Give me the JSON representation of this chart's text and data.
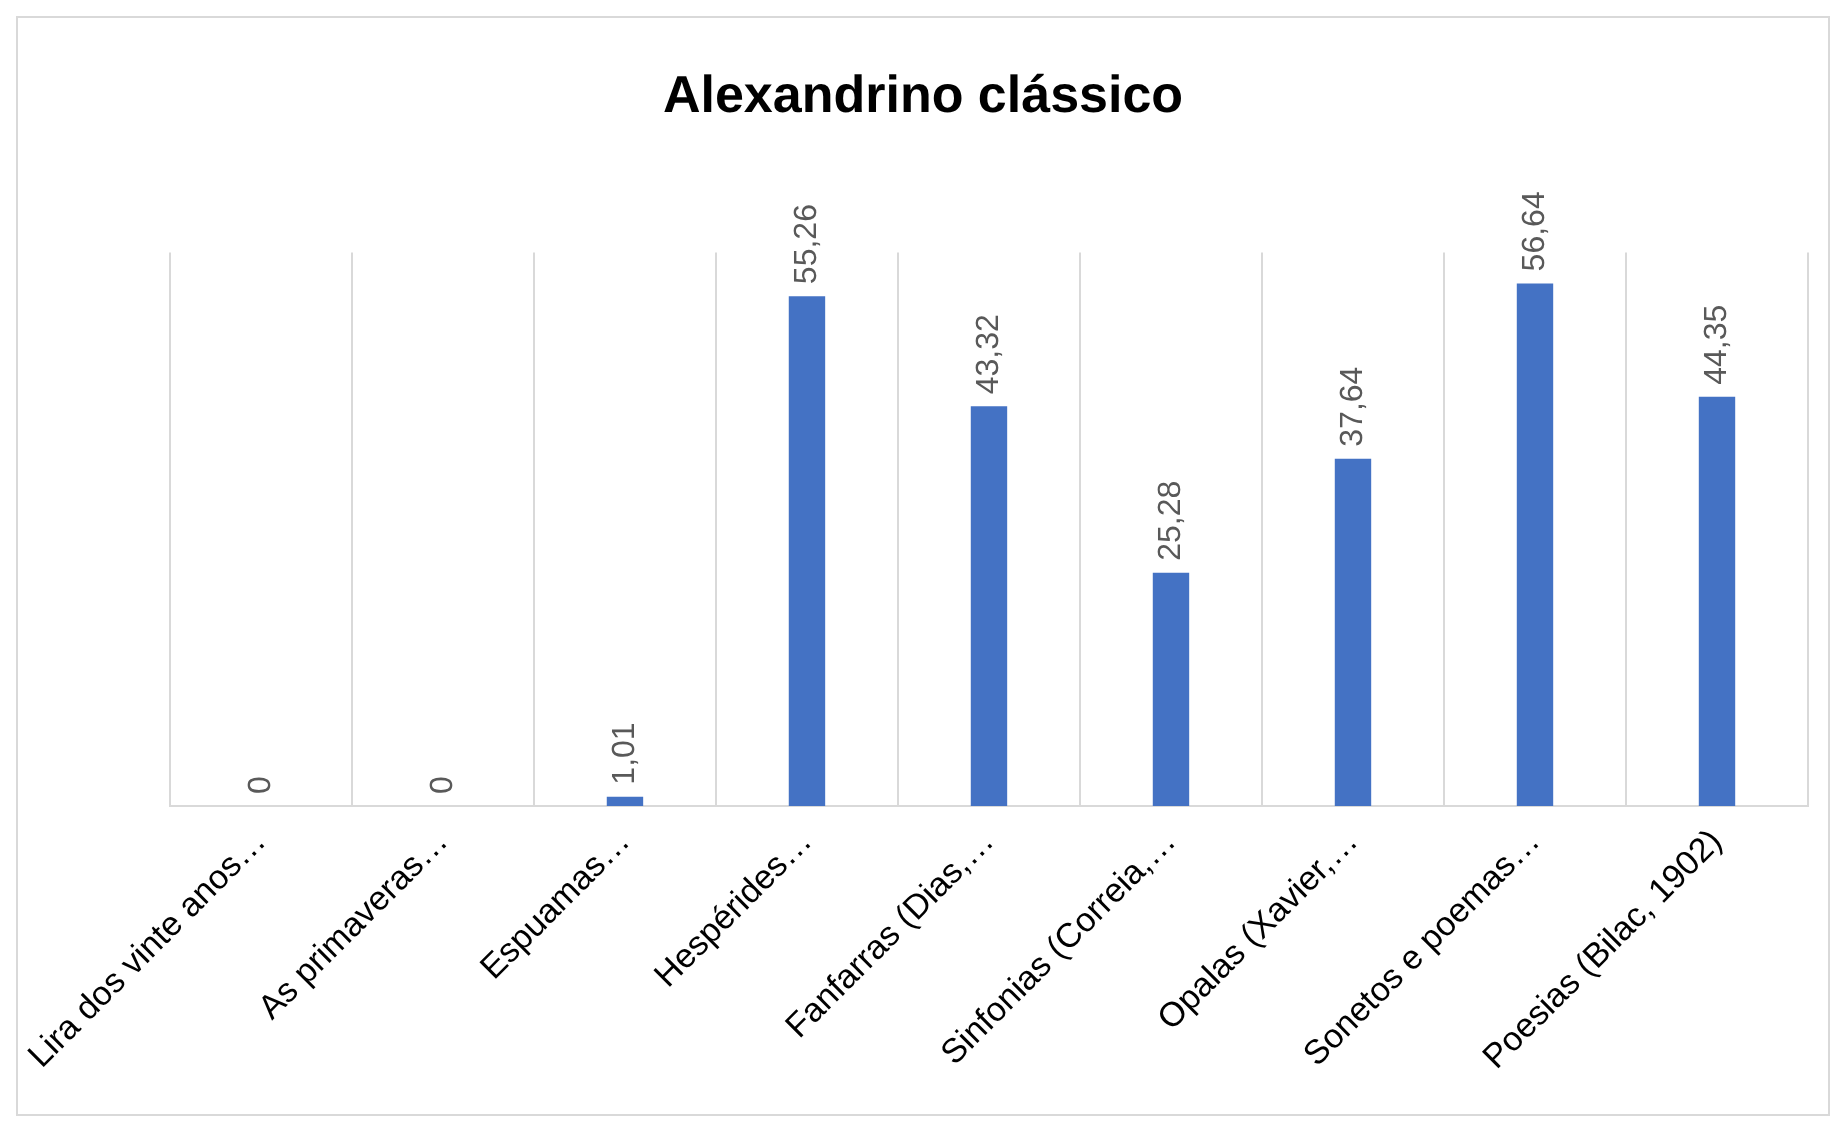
{
  "chart_data": {
    "type": "bar",
    "title": "Alexandrino clássico",
    "categories": [
      "Lira dos vinte anos…",
      "As primaveras…",
      "Espuamas…",
      "Hespérides…",
      "Fanfarras (Dias,…",
      "Sinfonias (Correia,…",
      "Opalas (Xavier,…",
      "Sonetos e poemas…",
      "Poesias (Bilac, 1902)"
    ],
    "values": [
      0,
      0,
      1.01,
      55.26,
      43.32,
      25.28,
      37.64,
      56.64,
      44.35
    ],
    "value_labels": [
      "0",
      "0",
      "1,01",
      "55,26",
      "43,32",
      "25,28",
      "37,64",
      "56,64",
      "44,35"
    ],
    "color": "#4472c4",
    "grid": "x",
    "legend": false
  }
}
